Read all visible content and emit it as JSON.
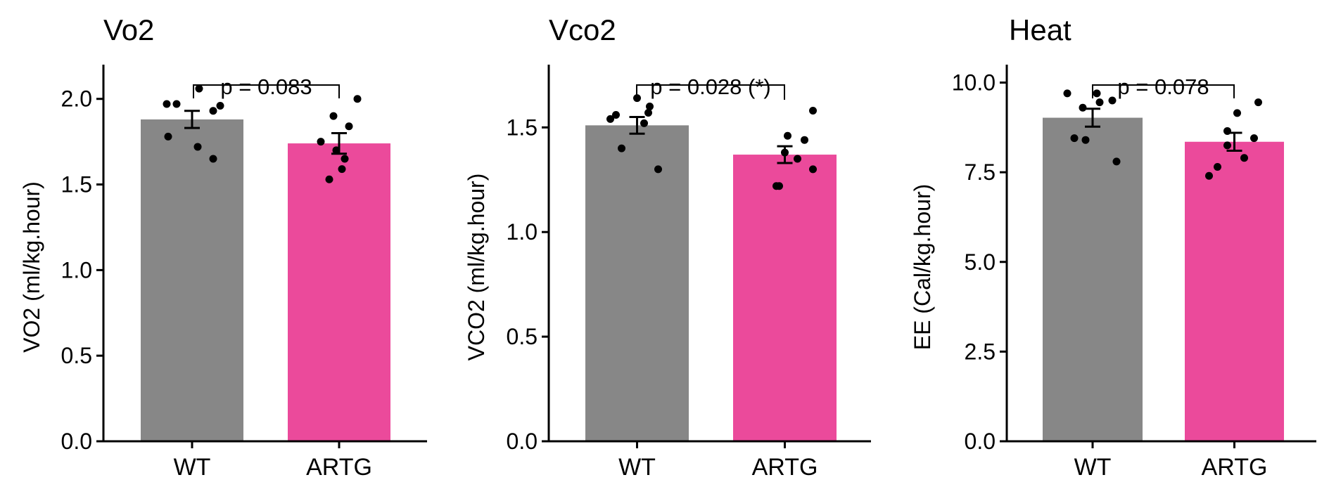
{
  "colors": {
    "wt": "#878787",
    "artg": "#eb4a9b",
    "axis": "#000000",
    "point": "#000000"
  },
  "chart_data": [
    {
      "type": "bar",
      "title": "Vo2",
      "xlabel": "",
      "ylabel": "VO2 (ml/kg.hour)",
      "ylim": [
        0,
        2.2
      ],
      "yticks": [
        0.0,
        0.5,
        1.0,
        1.5,
        2.0
      ],
      "ytick_labels": [
        "0.0",
        "0.5",
        "1.0",
        "1.5",
        "2.0"
      ],
      "categories": [
        "WT",
        "ARTG"
      ],
      "values": [
        1.88,
        1.74
      ],
      "errors": [
        0.05,
        0.06
      ],
      "points": [
        [
          1.97,
          1.97,
          1.78,
          2.06,
          1.72,
          1.93,
          1.96,
          1.65
        ],
        [
          1.75,
          1.53,
          1.59,
          1.65,
          1.7,
          1.9,
          1.84,
          2.0
        ]
      ],
      "annotation": "p = 0.083"
    },
    {
      "type": "bar",
      "title": "Vco2",
      "xlabel": "",
      "ylabel": "VCO2 (ml/kg.hour)",
      "ylim": [
        0,
        1.8
      ],
      "yticks": [
        0.0,
        0.5,
        1.0,
        1.5
      ],
      "ytick_labels": [
        "0.0",
        "0.5",
        "1.0",
        "1.5"
      ],
      "categories": [
        "WT",
        "ARTG"
      ],
      "values": [
        1.51,
        1.37
      ],
      "errors": [
        0.04,
        0.04
      ],
      "points": [
        [
          1.54,
          1.56,
          1.4,
          1.64,
          1.52,
          1.6,
          1.57,
          1.3
        ],
        [
          1.22,
          1.22,
          1.38,
          1.46,
          1.35,
          1.44,
          1.3,
          1.58
        ]
      ],
      "annotation": "p = 0.028 (*)"
    },
    {
      "type": "bar",
      "title": "Heat",
      "xlabel": "",
      "ylabel": "EE (Cal/kg.hour)",
      "ylim": [
        0,
        10.5
      ],
      "yticks": [
        0.0,
        2.5,
        5.0,
        7.5,
        10.0
      ],
      "ytick_labels": [
        "0.0",
        "2.5",
        "5.0",
        "7.5",
        "10.0"
      ],
      "categories": [
        "WT",
        "ARTG"
      ],
      "values": [
        9.02,
        8.35
      ],
      "errors": [
        0.25,
        0.25
      ],
      "points": [
        [
          9.7,
          8.45,
          9.3,
          8.4,
          9.7,
          9.45,
          9.5,
          7.8
        ],
        [
          7.4,
          7.65,
          8.25,
          8.65,
          9.15,
          7.9,
          8.45,
          9.45
        ]
      ],
      "annotation": "p = 0.078"
    }
  ]
}
